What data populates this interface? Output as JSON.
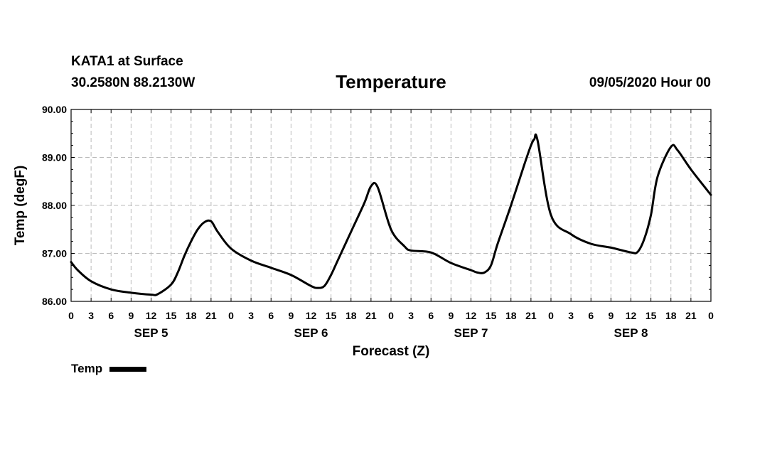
{
  "header": {
    "station": "KATA1 at Surface",
    "coords": "30.2580N 88.2130W",
    "title": "Temperature",
    "datetime": "09/05/2020 Hour 00"
  },
  "chart_data": {
    "type": "line",
    "title": "Temperature",
    "xlabel": "Forecast (Z)",
    "ylabel": "Temp (degF)",
    "ylim": [
      86.0,
      90.0
    ],
    "xlim": [
      0,
      96
    ],
    "yticks": [
      "86.00",
      "87.00",
      "88.00",
      "89.00",
      "90.00"
    ],
    "ytick_values": [
      86,
      87,
      88,
      89,
      90
    ],
    "xtick_labels": [
      "0",
      "3",
      "6",
      "9",
      "12",
      "15",
      "18",
      "21",
      "0",
      "3",
      "6",
      "9",
      "12",
      "15",
      "18",
      "21",
      "0",
      "3",
      "6",
      "9",
      "12",
      "15",
      "18",
      "21",
      "0",
      "3",
      "6",
      "9",
      "12",
      "15",
      "18",
      "21",
      "0"
    ],
    "day_labels": [
      {
        "label": "SEP 5",
        "hour": 12
      },
      {
        "label": "SEP 6",
        "hour": 36
      },
      {
        "label": "SEP 7",
        "hour": 60
      },
      {
        "label": "SEP 8",
        "hour": 84
      }
    ],
    "grid": true,
    "series": [
      {
        "name": "Temp",
        "x": [
          0,
          1,
          3,
          6,
          9,
          12,
          13,
          15,
          16,
          17,
          18,
          19,
          20,
          21,
          22,
          24,
          27,
          30,
          33,
          36,
          37,
          38,
          39,
          40,
          42,
          44,
          45,
          46,
          48,
          50,
          51,
          54,
          57,
          60,
          61,
          62,
          63,
          64,
          66,
          68,
          69,
          69.5,
          70,
          72,
          75,
          78,
          81,
          84,
          85,
          86,
          87,
          88,
          90,
          91,
          93,
          96
        ],
        "values": [
          86.82,
          86.65,
          86.42,
          86.25,
          86.18,
          86.14,
          86.15,
          86.35,
          86.6,
          86.95,
          87.25,
          87.5,
          87.65,
          87.67,
          87.45,
          87.1,
          86.85,
          86.7,
          86.55,
          86.32,
          86.28,
          86.32,
          86.55,
          86.85,
          87.45,
          88.05,
          88.4,
          88.38,
          87.5,
          87.15,
          87.06,
          87.02,
          86.8,
          86.65,
          86.6,
          86.6,
          86.75,
          87.2,
          88.0,
          88.85,
          89.25,
          89.38,
          89.35,
          87.8,
          87.4,
          87.2,
          87.12,
          87.02,
          87.03,
          87.3,
          87.8,
          88.6,
          89.22,
          89.15,
          88.75,
          88.22
        ]
      }
    ]
  },
  "legend": {
    "label": "Temp",
    "color": "#000000"
  }
}
